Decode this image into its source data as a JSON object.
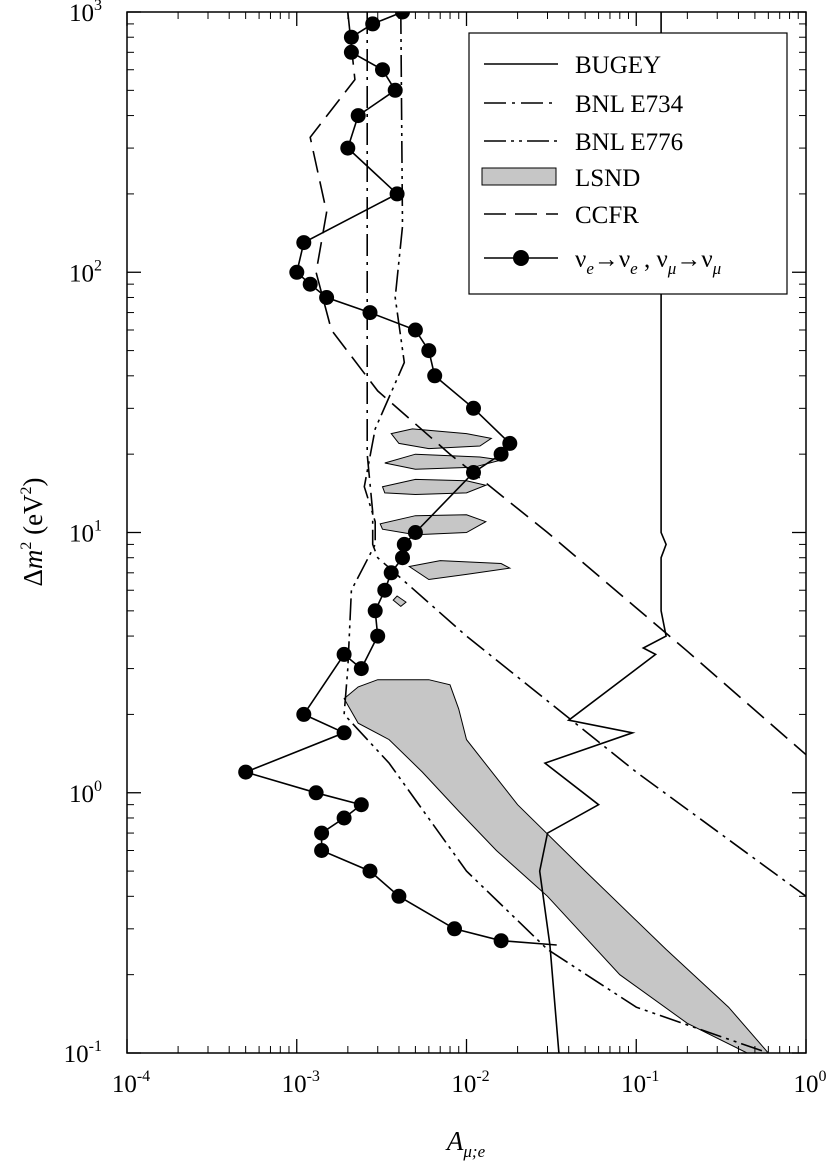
{
  "chart_data": {
    "type": "line",
    "xlabel": "A_{μ;e}",
    "ylabel": "Δm² (eV²)",
    "x_scale": "log",
    "y_scale": "log",
    "xlim": [
      0.0001,
      1
    ],
    "ylim": [
      0.1,
      1000
    ],
    "grid": false,
    "legend_position": "top-right",
    "x_ticks": [
      {
        "value": 0.0001,
        "base": "10",
        "exp": "-4"
      },
      {
        "value": 0.001,
        "base": "10",
        "exp": "-3"
      },
      {
        "value": 0.01,
        "base": "10",
        "exp": "-2"
      },
      {
        "value": 0.1,
        "base": "10",
        "exp": "-1"
      },
      {
        "value": 1,
        "base": "10",
        "exp": "0"
      }
    ],
    "y_ticks": [
      {
        "value": 0.1,
        "base": "10",
        "exp": "-1"
      },
      {
        "value": 1,
        "base": "10",
        "exp": "0"
      },
      {
        "value": 10,
        "base": "10",
        "exp": "1"
      },
      {
        "value": 100,
        "base": "10",
        "exp": "2"
      },
      {
        "value": 1000,
        "base": "10",
        "exp": "3"
      }
    ],
    "series": [
      {
        "name": "BUGEY",
        "style": "solid",
        "points": [
          [
            0.035,
            0.1
          ],
          [
            0.031,
            0.26
          ],
          [
            0.027,
            0.5
          ],
          [
            0.03,
            0.7
          ],
          [
            0.06,
            0.9
          ],
          [
            0.029,
            1.3
          ],
          [
            0.095,
            1.7
          ],
          [
            0.04,
            1.9
          ],
          [
            0.13,
            3.4
          ],
          [
            0.11,
            3.6
          ],
          [
            0.15,
            4
          ],
          [
            0.14,
            5
          ],
          [
            0.14,
            8
          ],
          [
            0.15,
            9
          ],
          [
            0.14,
            10
          ],
          [
            0.14,
            1000
          ]
        ]
      },
      {
        "name": "BNL E734",
        "style": "dashdot",
        "points": [
          [
            0.0026,
            1000
          ],
          [
            0.0026,
            150
          ],
          [
            0.0026,
            50
          ],
          [
            0.0026,
            20
          ],
          [
            0.0028,
            12
          ],
          [
            0.0028,
            9
          ],
          [
            0.003,
            8
          ],
          [
            0.01,
            4
          ],
          [
            0.1,
            1.2
          ],
          [
            1,
            0.4
          ]
        ]
      },
      {
        "name": "BNL E776",
        "style": "dashdotdot",
        "points": [
          [
            0.0041,
            1000
          ],
          [
            0.0042,
            150
          ],
          [
            0.0038,
            80
          ],
          [
            0.0043,
            45
          ],
          [
            0.0029,
            25
          ],
          [
            0.0025,
            15
          ],
          [
            0.0029,
            11
          ],
          [
            0.0029,
            9
          ],
          [
            0.0021,
            6
          ],
          [
            0.002,
            3
          ],
          [
            0.0019,
            2
          ],
          [
            0.0035,
            1.3
          ],
          [
            0.01,
            0.5
          ],
          [
            0.03,
            0.25
          ],
          [
            0.1,
            0.15
          ],
          [
            0.6,
            0.1
          ]
        ]
      },
      {
        "name": "CCFR",
        "style": "dashed",
        "points": [
          [
            0.002,
            1000
          ],
          [
            0.0022,
            550
          ],
          [
            0.0012,
            330
          ],
          [
            0.0015,
            170
          ],
          [
            0.0013,
            100
          ],
          [
            0.0016,
            60
          ],
          [
            0.003,
            35
          ],
          [
            0.008,
            20
          ],
          [
            0.03,
            10
          ],
          [
            0.2,
            3.5
          ],
          [
            1,
            1.4
          ]
        ]
      },
      {
        "name": "ν_e→ν_e , ν_μ→ν_μ",
        "style": "solid-circles",
        "points": [
          [
            0.0042,
            1000
          ],
          [
            0.0028,
            900
          ],
          [
            0.0021,
            800
          ],
          [
            0.0021,
            700
          ],
          [
            0.0032,
            600
          ],
          [
            0.0038,
            500
          ],
          [
            0.0023,
            400
          ],
          [
            0.002,
            300
          ],
          [
            0.0039,
            200
          ],
          [
            0.0011,
            130
          ],
          [
            0.001,
            100
          ],
          [
            0.0012,
            90
          ],
          [
            0.0015,
            80
          ],
          [
            0.0027,
            70
          ],
          [
            0.005,
            60
          ],
          [
            0.006,
            50
          ],
          [
            0.0065,
            40
          ],
          [
            0.011,
            30
          ],
          [
            0.018,
            22
          ],
          [
            0.016,
            20
          ],
          [
            0.011,
            17
          ],
          [
            0.005,
            10
          ],
          [
            0.0043,
            9
          ],
          [
            0.0042,
            8
          ],
          [
            0.0036,
            7
          ],
          [
            0.0033,
            6
          ],
          [
            0.0029,
            5
          ],
          [
            0.003,
            4
          ],
          [
            0.0024,
            3
          ],
          [
            0.0019,
            3.4
          ],
          [
            0.0011,
            2
          ],
          [
            0.0019,
            1.7
          ],
          [
            0.0005,
            1.2
          ],
          [
            0.0013,
            1
          ],
          [
            0.0024,
            0.9
          ],
          [
            0.0019,
            0.8
          ],
          [
            0.0014,
            0.7
          ],
          [
            0.0014,
            0.6
          ],
          [
            0.0027,
            0.5
          ],
          [
            0.004,
            0.4
          ],
          [
            0.0085,
            0.3
          ],
          [
            0.016,
            0.27
          ],
          [
            0.034,
            0.26
          ]
        ]
      },
      {
        "name": "LSND",
        "style": "filled-region",
        "regions": [
          [
            [
              0.0019,
              2.3
            ],
            [
              0.0023,
              2.55
            ],
            [
              0.003,
              2.72
            ],
            [
              0.006,
              2.72
            ],
            [
              0.008,
              2.6
            ],
            [
              0.009,
              2.1
            ],
            [
              0.01,
              1.6
            ],
            [
              0.02,
              0.9
            ],
            [
              0.05,
              0.5
            ],
            [
              0.15,
              0.25
            ],
            [
              0.35,
              0.15
            ],
            [
              0.6,
              0.1
            ],
            [
              0.45,
              0.1
            ],
            [
              0.2,
              0.13
            ],
            [
              0.08,
              0.2
            ],
            [
              0.03,
              0.4
            ],
            [
              0.015,
              0.6
            ],
            [
              0.009,
              0.85
            ],
            [
              0.0055,
              1.2
            ],
            [
              0.0035,
              1.6
            ],
            [
              0.0023,
              1.85
            ]
          ],
          [
            [
              0.0036,
              24
            ],
            [
              0.0048,
              25
            ],
            [
              0.01,
              24
            ],
            [
              0.014,
              23
            ],
            [
              0.012,
              21.5
            ],
            [
              0.006,
              21
            ],
            [
              0.004,
              22
            ]
          ],
          [
            [
              0.0033,
              18.5
            ],
            [
              0.005,
              20
            ],
            [
              0.012,
              19.5
            ],
            [
              0.016,
              19
            ],
            [
              0.011,
              17.8
            ],
            [
              0.005,
              17.5
            ]
          ],
          [
            [
              0.0032,
              15
            ],
            [
              0.005,
              16
            ],
            [
              0.01,
              15.8
            ],
            [
              0.013,
              15.2
            ],
            [
              0.01,
              14.2
            ],
            [
              0.005,
              14
            ],
            [
              0.0033,
              14.2
            ]
          ],
          [
            [
              0.0031,
              10.8
            ],
            [
              0.005,
              11.6
            ],
            [
              0.01,
              11.7
            ],
            [
              0.013,
              11
            ],
            [
              0.01,
              10
            ],
            [
              0.005,
              9.8
            ],
            [
              0.0032,
              10.3
            ]
          ],
          [
            [
              0.0046,
              7.4
            ],
            [
              0.007,
              7.8
            ],
            [
              0.016,
              7.6
            ],
            [
              0.018,
              7.3
            ],
            [
              0.01,
              6.9
            ],
            [
              0.006,
              6.6
            ]
          ],
          [
            [
              0.0039,
              5.7
            ],
            [
              0.0044,
              5.4
            ],
            [
              0.0041,
              5.2
            ],
            [
              0.0037,
              5.5
            ]
          ]
        ]
      }
    ],
    "legend": [
      {
        "label": "BUGEY",
        "style": "solid"
      },
      {
        "label": "BNL E734",
        "style": "dashdot"
      },
      {
        "label": "BNL E776",
        "style": "dashdotdot"
      },
      {
        "label": "LSND",
        "style": "filled-region"
      },
      {
        "label": "CCFR",
        "style": "dashed"
      },
      {
        "label": "ν_e→ν_e , ν_μ→ν_μ",
        "style": "solid-circles"
      }
    ],
    "legend_rich": {
      "nu": "ν",
      "e": "e",
      "mu": "μ",
      "arrow": "→",
      "sep": " , "
    },
    "axis_label_parts": {
      "x_main": "A",
      "x_sub": "μ;e",
      "y_delta": "Δ",
      "y_m": "m",
      "y_exp": "2",
      "y_units_open": " (eV",
      "y_units_close": ")"
    }
  }
}
